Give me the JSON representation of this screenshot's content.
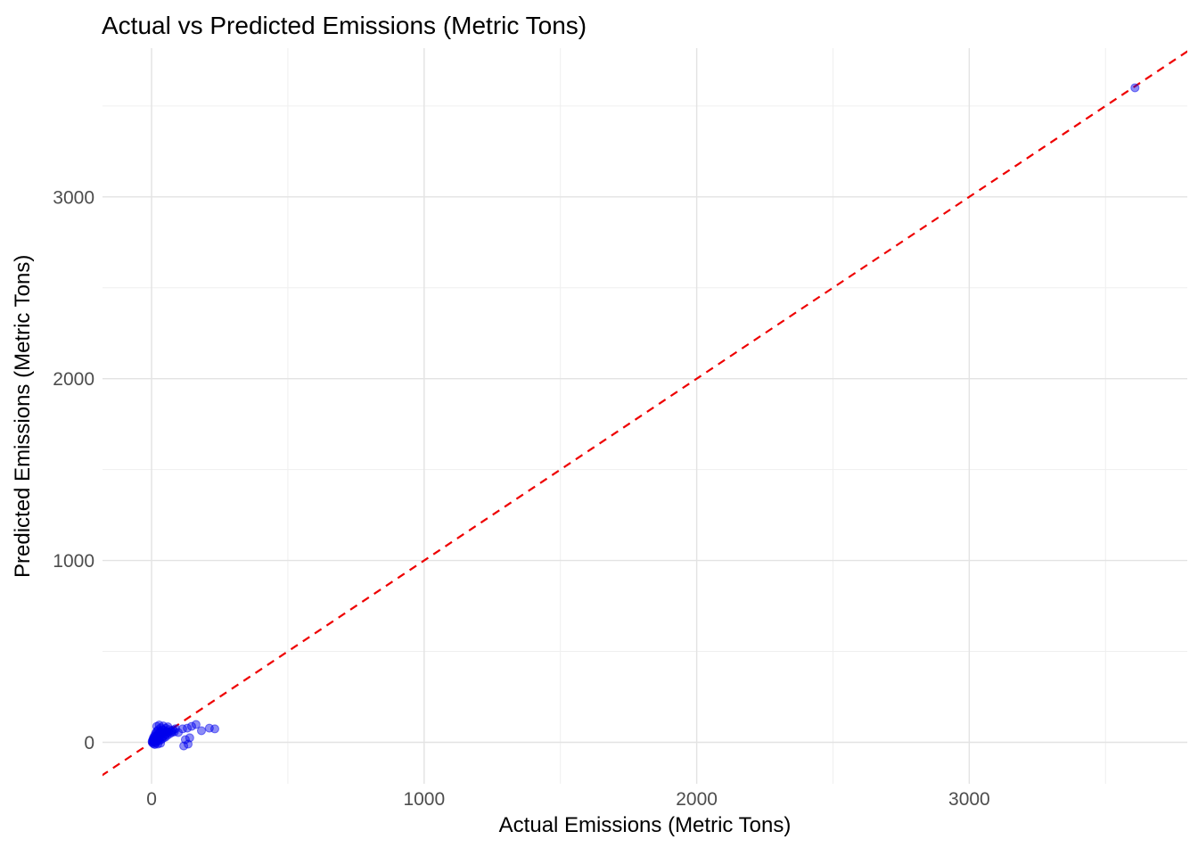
{
  "chart_data": {
    "type": "scatter",
    "title": "Actual vs Predicted Emissions (Metric Tons)",
    "xlabel": "Actual Emissions (Metric Tons)",
    "ylabel": "Predicted Emissions (Metric Tons)",
    "xlim": [
      -180,
      3800
    ],
    "ylim": [
      -228,
      3818
    ],
    "x_major_ticks": [
      0,
      1000,
      2000,
      3000
    ],
    "y_major_ticks": [
      0,
      1000,
      2000,
      3000
    ],
    "x_minor_ticks": [
      500,
      1500,
      2500,
      3500
    ],
    "y_minor_ticks": [
      500,
      1500,
      2500,
      3500
    ],
    "grid": "major+minor",
    "legend_position": "none",
    "reference_line": {
      "style": "dashed",
      "color": "#EE0000",
      "slope": 1,
      "intercept": 0,
      "from": -185,
      "to": 3810
    },
    "point_style": {
      "color": "#0000EE",
      "fill_opacity": 0.45,
      "radius_px": 4.5
    },
    "series": [
      {
        "name": "actual-vs-predicted-points",
        "points": [
          [
            2,
            5
          ],
          [
            3,
            -2
          ],
          [
            4,
            12
          ],
          [
            5,
            3
          ],
          [
            6,
            20
          ],
          [
            7,
            -8
          ],
          [
            8,
            9
          ],
          [
            8,
            28
          ],
          [
            9,
            16
          ],
          [
            10,
            2
          ],
          [
            11,
            35
          ],
          [
            12,
            -12
          ],
          [
            12,
            22
          ],
          [
            13,
            8
          ],
          [
            14,
            45
          ],
          [
            15,
            28
          ],
          [
            15,
            -5
          ],
          [
            16,
            15
          ],
          [
            17,
            55
          ],
          [
            18,
            5
          ],
          [
            18,
            35
          ],
          [
            19,
            88
          ],
          [
            20,
            20
          ],
          [
            20,
            62
          ],
          [
            21,
            10
          ],
          [
            22,
            42
          ],
          [
            23,
            -10
          ],
          [
            24,
            30
          ],
          [
            25,
            70
          ],
          [
            26,
            18
          ],
          [
            27,
            50
          ],
          [
            28,
            8
          ],
          [
            28,
            95
          ],
          [
            30,
            38
          ],
          [
            31,
            25
          ],
          [
            32,
            60
          ],
          [
            33,
            -5
          ],
          [
            34,
            80
          ],
          [
            35,
            45
          ],
          [
            36,
            15
          ],
          [
            38,
            55
          ],
          [
            39,
            30
          ],
          [
            40,
            70
          ],
          [
            42,
            22
          ],
          [
            43,
            90
          ],
          [
            45,
            50
          ],
          [
            46,
            35
          ],
          [
            48,
            65
          ],
          [
            50,
            28
          ],
          [
            52,
            78
          ],
          [
            54,
            45
          ],
          [
            56,
            60
          ],
          [
            58,
            38
          ],
          [
            60,
            85
          ],
          [
            62,
            55
          ],
          [
            65,
            70
          ],
          [
            68,
            48
          ],
          [
            72,
            62
          ],
          [
            76,
            55
          ],
          [
            80,
            68
          ],
          [
            84,
            58
          ],
          [
            88,
            75
          ],
          [
            98,
            54
          ],
          [
            114,
            74
          ],
          [
            131,
            78
          ],
          [
            147,
            88
          ],
          [
            163,
            98
          ],
          [
            124,
            15
          ],
          [
            140,
            25
          ],
          [
            118,
            -20
          ],
          [
            134,
            -10
          ],
          [
            183,
            64
          ],
          [
            212,
            78
          ],
          [
            232,
            74
          ],
          [
            3608,
            3600
          ]
        ]
      }
    ],
    "colors": {
      "grid_major": "#E3E3E3",
      "grid_minor": "#EFEFEF",
      "tick_label": "#4D4D4D",
      "title_text": "#000000",
      "background": "#FFFFFF"
    }
  }
}
